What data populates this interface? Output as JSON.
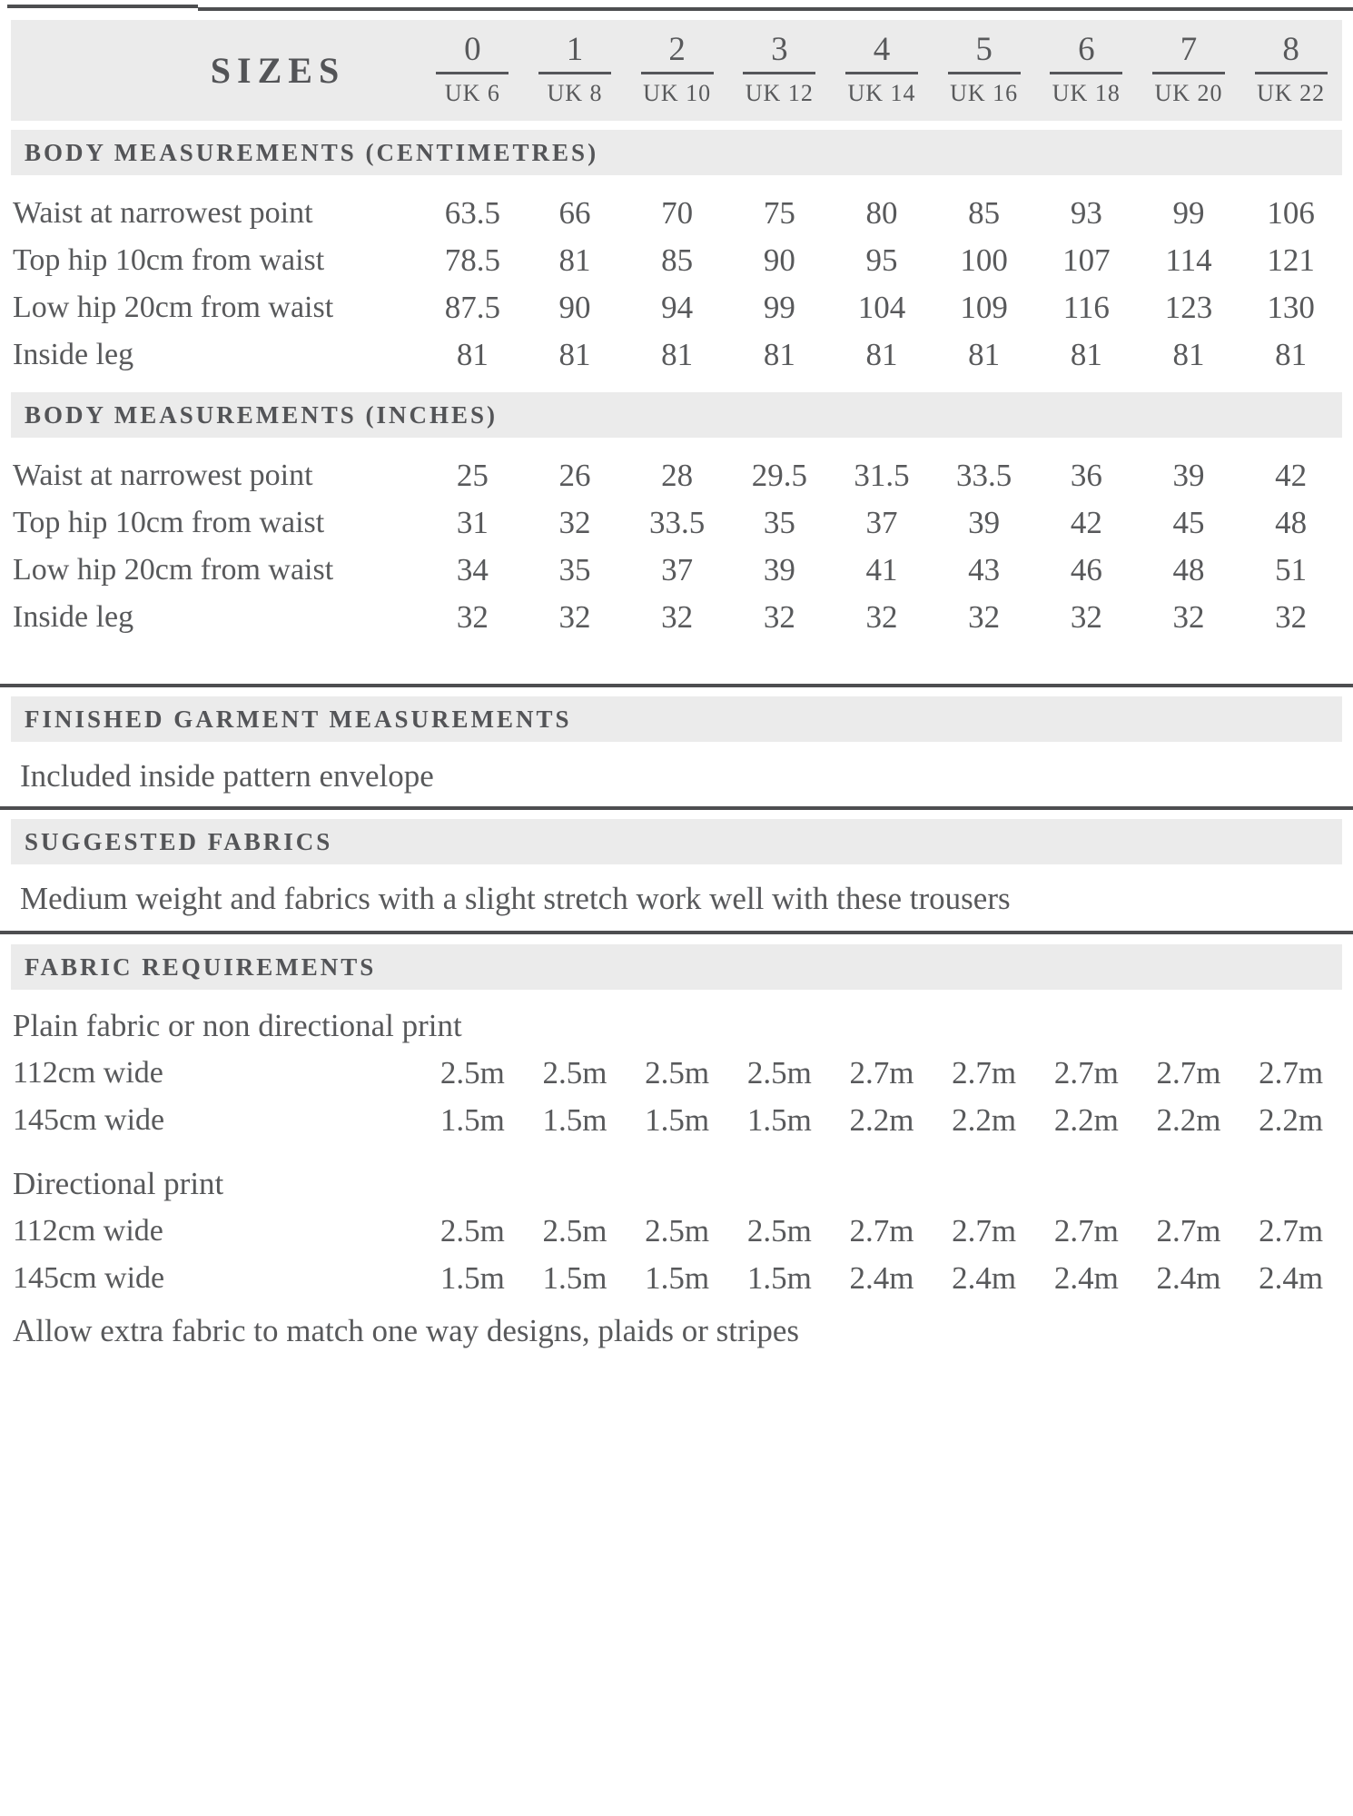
{
  "sizes_header": {
    "title": "SIZES",
    "columns": [
      {
        "num": "0",
        "uk": "UK 6"
      },
      {
        "num": "1",
        "uk": "UK 8"
      },
      {
        "num": "2",
        "uk": "UK 10"
      },
      {
        "num": "3",
        "uk": "UK 12"
      },
      {
        "num": "4",
        "uk": "UK 14"
      },
      {
        "num": "5",
        "uk": "UK 16"
      },
      {
        "num": "6",
        "uk": "UK 18"
      },
      {
        "num": "7",
        "uk": "UK 20"
      },
      {
        "num": "8",
        "uk": "UK 22"
      }
    ]
  },
  "body_cm": {
    "heading": "BODY MEASUREMENTS (CENTIMETRES)",
    "rows": [
      {
        "label": "Waist at narrowest point",
        "values": [
          "63.5",
          "66",
          "70",
          "75",
          "80",
          "85",
          "93",
          "99",
          "106"
        ]
      },
      {
        "label": "Top hip 10cm from waist",
        "values": [
          "78.5",
          "81",
          "85",
          "90",
          "95",
          "100",
          "107",
          "114",
          "121"
        ]
      },
      {
        "label": "Low hip 20cm from waist",
        "values": [
          "87.5",
          "90",
          "94",
          "99",
          "104",
          "109",
          "116",
          "123",
          "130"
        ]
      },
      {
        "label": "Inside leg",
        "values": [
          "81",
          "81",
          "81",
          "81",
          "81",
          "81",
          "81",
          "81",
          "81"
        ]
      }
    ]
  },
  "body_in": {
    "heading": "BODY MEASUREMENTS (INCHES)",
    "rows": [
      {
        "label": "Waist at narrowest point",
        "values": [
          "25",
          "26",
          "28",
          "29.5",
          "31.5",
          "33.5",
          "36",
          "39",
          "42"
        ]
      },
      {
        "label": "Top hip 10cm from waist",
        "values": [
          "31",
          "32",
          "33.5",
          "35",
          "37",
          "39",
          "42",
          "45",
          "48"
        ]
      },
      {
        "label": "Low hip 20cm from waist",
        "values": [
          "34",
          "35",
          "37",
          "39",
          "41",
          "43",
          "46",
          "48",
          "51"
        ]
      },
      {
        "label": "Inside leg",
        "values": [
          "32",
          "32",
          "32",
          "32",
          "32",
          "32",
          "32",
          "32",
          "32"
        ]
      }
    ]
  },
  "finished": {
    "heading": "FINISHED GARMENT MEASUREMENTS",
    "text": "Included inside pattern envelope"
  },
  "fabrics": {
    "heading": "SUGGESTED FABRICS",
    "text": "Medium weight and fabrics with a slight stretch work well with these trousers"
  },
  "requirements": {
    "heading": "FABRIC REQUIREMENTS",
    "groups": [
      {
        "label": "Plain fabric or non directional print",
        "rows": [
          {
            "label": "112cm wide",
            "values": [
              "2.5m",
              "2.5m",
              "2.5m",
              "2.5m",
              "2.7m",
              "2.7m",
              "2.7m",
              "2.7m",
              "2.7m"
            ]
          },
          {
            "label": "145cm wide",
            "values": [
              "1.5m",
              "1.5m",
              "1.5m",
              "1.5m",
              "2.2m",
              "2.2m",
              "2.2m",
              "2.2m",
              "2.2m"
            ]
          }
        ]
      },
      {
        "label": "Directional print",
        "rows": [
          {
            "label": "112cm wide",
            "values": [
              "2.5m",
              "2.5m",
              "2.5m",
              "2.5m",
              "2.7m",
              "2.7m",
              "2.7m",
              "2.7m",
              "2.7m"
            ]
          },
          {
            "label": "145cm wide",
            "values": [
              "1.5m",
              "1.5m",
              "1.5m",
              "1.5m",
              "2.4m",
              "2.4m",
              "2.4m",
              "2.4m",
              "2.4m"
            ]
          }
        ]
      }
    ],
    "note": "Allow extra fabric to match one way designs, plaids or stripes"
  }
}
